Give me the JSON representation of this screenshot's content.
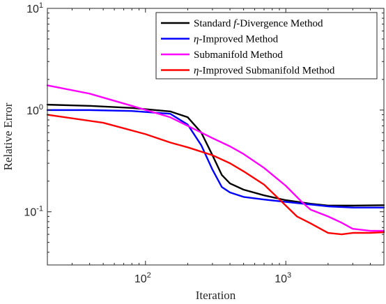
{
  "chart_data": {
    "type": "line",
    "xlabel": "Iteration",
    "ylabel": "Relative Error",
    "xscale": "log",
    "yscale": "log",
    "xlim": [
      20,
      5000
    ],
    "ylim": [
      0.03,
      10
    ],
    "grid": false,
    "legend_position": "top-right",
    "x_ticks": [
      {
        "value": 100,
        "base": "10",
        "exp": "2"
      },
      {
        "value": 1000,
        "base": "10",
        "exp": "3"
      }
    ],
    "y_ticks": [
      {
        "value": 0.1,
        "base": "10",
        "exp": "-1"
      },
      {
        "value": 1,
        "base": "10",
        "exp": "0"
      },
      {
        "value": 10,
        "base": "10",
        "exp": "1"
      }
    ],
    "series": [
      {
        "name": "Standard f-Divergence Method",
        "legend_parts": [
          "Standard ",
          "f",
          "-Divergence Method"
        ],
        "color": "#000000",
        "x": [
          20,
          40,
          80,
          150,
          200,
          250,
          300,
          350,
          400,
          500,
          700,
          1000,
          1500,
          2000,
          3000,
          5000
        ],
        "y": [
          1.13,
          1.1,
          1.05,
          0.97,
          0.85,
          0.6,
          0.36,
          0.23,
          0.19,
          0.165,
          0.145,
          0.13,
          0.12,
          0.115,
          0.115,
          0.116
        ]
      },
      {
        "name": "η-Improved Method",
        "legend_parts": [
          "η",
          "-Improved Method"
        ],
        "color": "#0000ff",
        "x": [
          20,
          40,
          80,
          150,
          200,
          250,
          300,
          350,
          400,
          500,
          700,
          1000,
          1500,
          2000,
          3000,
          5000
        ],
        "y": [
          1.0,
          1.0,
          0.98,
          0.92,
          0.72,
          0.45,
          0.26,
          0.175,
          0.155,
          0.14,
          0.132,
          0.125,
          0.118,
          0.113,
          0.11,
          0.11
        ]
      },
      {
        "name": "Submanifold Method",
        "legend_parts": [
          "Submanifold Method"
        ],
        "color": "#ff00ff",
        "x": [
          20,
          40,
          80,
          150,
          200,
          300,
          400,
          500,
          700,
          1000,
          1300,
          1500,
          2000,
          2500,
          3000,
          4000,
          5000
        ],
        "y": [
          1.75,
          1.45,
          1.1,
          0.85,
          0.7,
          0.53,
          0.44,
          0.37,
          0.27,
          0.18,
          0.125,
          0.105,
          0.09,
          0.078,
          0.068,
          0.065,
          0.065
        ]
      },
      {
        "name": "η-Improved Submanifold Method",
        "legend_parts": [
          "η",
          "-Improved Submanifold Method"
        ],
        "color": "#ff0000",
        "x": [
          20,
          50,
          100,
          150,
          200,
          300,
          400,
          500,
          700,
          800,
          1000,
          1200,
          1500,
          2000,
          2500,
          3000,
          4000,
          5000
        ],
        "y": [
          0.9,
          0.75,
          0.58,
          0.48,
          0.43,
          0.36,
          0.3,
          0.25,
          0.185,
          0.155,
          0.115,
          0.09,
          0.077,
          0.062,
          0.06,
          0.062,
          0.062,
          0.063
        ]
      }
    ]
  }
}
